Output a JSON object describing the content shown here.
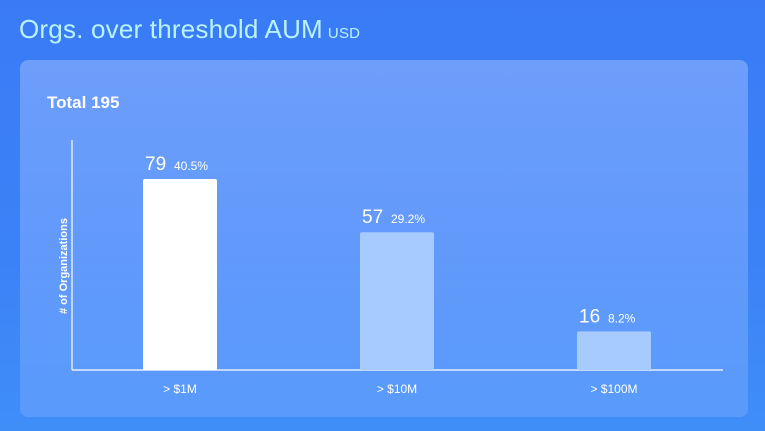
{
  "title": "Orgs. over threshold AUM",
  "title_unit": "USD",
  "total_label": "Total 195",
  "colors": {
    "bar_primary": "#ffffff",
    "bar_secondary": "#a7caff",
    "axis": "#ffffff"
  },
  "chart_data": {
    "type": "bar",
    "title": "Orgs. over threshold AUM",
    "ylabel": "# of Organizations",
    "xlabel": "",
    "categories": [
      "> $1M",
      "> $10M",
      "> $100M"
    ],
    "values": [
      79,
      57,
      16
    ],
    "percent_labels": [
      "40.5%",
      "29.2%",
      "8.2%"
    ],
    "ylim": [
      0,
      79
    ],
    "grid": false,
    "legend": "none"
  }
}
